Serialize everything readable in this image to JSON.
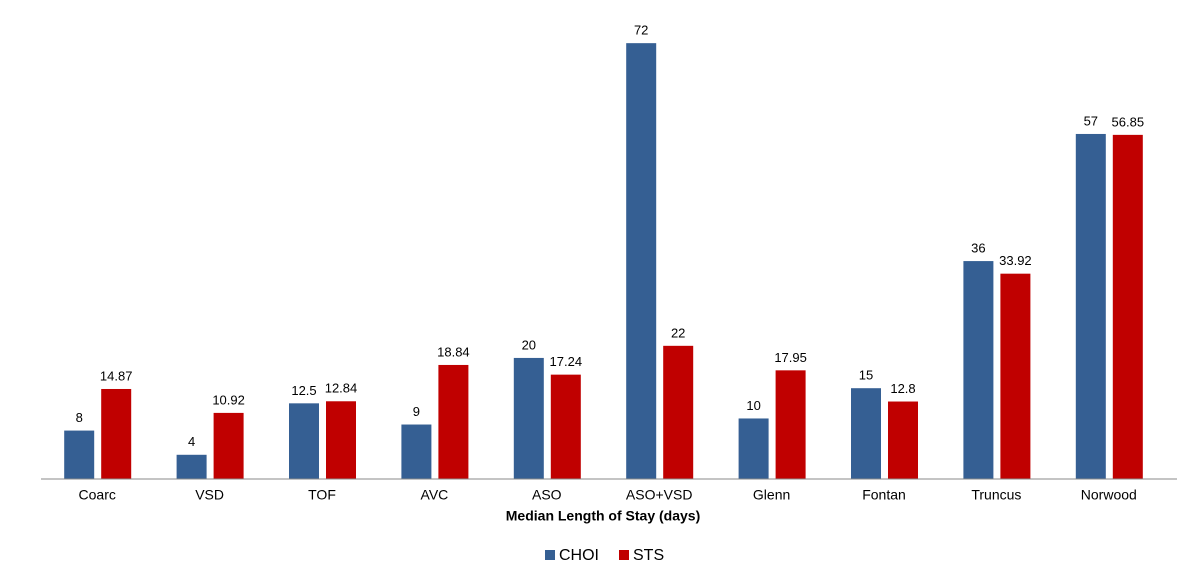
{
  "chart_data": {
    "type": "bar",
    "x_label": "Median Length of Stay (days)",
    "categories": [
      "Coarc",
      "VSD",
      "TOF",
      "AVC",
      "ASO",
      "ASO+VSD",
      "Glenn",
      "Fontan",
      "Truncus",
      "Norwood"
    ],
    "series": [
      {
        "name": "CHOI",
        "color": "#355f93",
        "values": [
          8,
          4,
          12.5,
          9,
          20,
          72,
          10,
          15,
          36,
          57
        ]
      },
      {
        "name": "STS",
        "color": "#c00000",
        "values": [
          14.87,
          10.92,
          12.84,
          18.84,
          17.24,
          22,
          17.95,
          12.8,
          33.92,
          56.85
        ]
      }
    ],
    "ylim": [
      0,
      75
    ],
    "legend": "bottom"
  }
}
